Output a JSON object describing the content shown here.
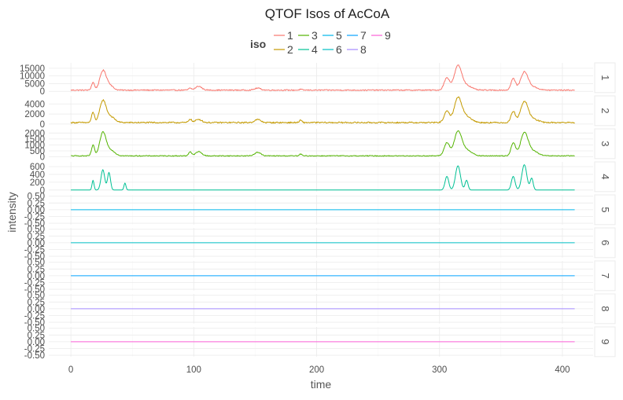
{
  "chart_data": {
    "type": "line",
    "title": "QTOF Isos of AcCoA",
    "xlabel": "time",
    "ylabel": "intensity",
    "xlim": [
      -18,
      425
    ],
    "x_ticks": [
      0,
      100,
      200,
      300,
      400
    ],
    "x_tick_labels": [
      "0",
      "100",
      "200",
      "300",
      "400"
    ],
    "grid": true,
    "facets": "rows by iso, free y scales",
    "legend": {
      "title": "iso",
      "placement": "top",
      "entries": [
        "1",
        "2",
        "3",
        "4",
        "5",
        "6",
        "7",
        "8",
        "9"
      ]
    },
    "series": [
      {
        "name": "1",
        "color": "#F8766D",
        "ylim": [
          -800,
          18500
        ],
        "y_ticks": [
          0,
          5000,
          10000,
          15000
        ],
        "y_tick_labels": [
          "0",
          "5000",
          "10000",
          "15000"
        ],
        "baseline": 800,
        "peaks": [
          [
            18,
            5000,
            1.2
          ],
          [
            26,
            12000,
            2.5
          ],
          [
            31,
            3500,
            3.0
          ],
          [
            97,
            1200,
            1.2
          ],
          [
            104,
            2500,
            2.5
          ],
          [
            152,
            1300,
            2.5
          ],
          [
            187,
            500,
            1.0
          ],
          [
            306,
            8000,
            2.2
          ],
          [
            315,
            15500,
            3.0
          ],
          [
            322,
            3000,
            4.0
          ],
          [
            360,
            7500,
            1.8
          ],
          [
            369,
            11500,
            3.0
          ],
          [
            376,
            2000,
            4.0
          ]
        ]
      },
      {
        "name": "2",
        "color": "#C49A00",
        "ylim": [
          -300,
          5600
        ],
        "y_ticks": [
          0,
          2000,
          4000
        ],
        "y_tick_labels": [
          "0",
          "2000",
          "4000"
        ],
        "baseline": 300,
        "peaks": [
          [
            18,
            2000,
            1.2
          ],
          [
            26,
            4200,
            2.5
          ],
          [
            32,
            1200,
            3.5
          ],
          [
            97,
            700,
            1.2
          ],
          [
            104,
            650,
            2.5
          ],
          [
            152,
            600,
            2.5
          ],
          [
            187,
            450,
            1.0
          ],
          [
            306,
            2200,
            2.2
          ],
          [
            315,
            4800,
            3.0
          ],
          [
            322,
            1200,
            4.0
          ],
          [
            360,
            2200,
            1.8
          ],
          [
            369,
            4100,
            3.0
          ],
          [
            376,
            700,
            4.0
          ]
        ]
      },
      {
        "name": "3",
        "color": "#53B400",
        "ylim": [
          -150,
          2350
        ],
        "y_ticks": [
          0,
          500,
          1000,
          1500,
          2000
        ],
        "y_tick_labels": [
          "0",
          "500",
          "1000",
          "1500",
          "2000"
        ],
        "baseline": 80,
        "peaks": [
          [
            18,
            900,
            1.2
          ],
          [
            26,
            1900,
            2.5
          ],
          [
            32,
            500,
            3.5
          ],
          [
            97,
            350,
            1.2
          ],
          [
            104,
            350,
            2.5
          ],
          [
            152,
            300,
            2.5
          ],
          [
            187,
            150,
            1.0
          ],
          [
            306,
            1100,
            2.2
          ],
          [
            315,
            2000,
            3.0
          ],
          [
            322,
            500,
            4.0
          ],
          [
            360,
            1100,
            1.8
          ],
          [
            369,
            1900,
            3.0
          ],
          [
            376,
            400,
            4.0
          ]
        ]
      },
      {
        "name": "4",
        "color": "#00C094",
        "ylim": [
          -40,
          720
        ],
        "y_ticks": [
          0,
          200,
          400,
          600
        ],
        "y_tick_labels": [
          "0",
          "200",
          "400",
          "600"
        ],
        "baseline": 0,
        "peaks": [
          [
            18,
            250,
            0.8
          ],
          [
            26,
            520,
            1.5
          ],
          [
            31,
            450,
            1.2
          ],
          [
            44,
            180,
            0.8
          ],
          [
            306,
            350,
            1.5
          ],
          [
            315,
            620,
            2.0
          ],
          [
            322,
            250,
            1.2
          ],
          [
            360,
            350,
            1.5
          ],
          [
            369,
            650,
            2.0
          ],
          [
            375,
            300,
            1.2
          ]
        ]
      },
      {
        "name": "5",
        "color": "#00B6EB",
        "ylim": [
          -0.55,
          0.55
        ],
        "baseline": 0,
        "peaks": [],
        "y_ticks": [
          -0.5,
          -0.25,
          0,
          0.25,
          0.5
        ],
        "y_tick_labels": [
          "-0.50",
          "-0.25",
          "0.00",
          "0.25",
          "0.50"
        ]
      },
      {
        "name": "6",
        "color": "#00BFC4",
        "ylim": [
          -0.55,
          0.55
        ],
        "baseline": 0,
        "peaks": [],
        "y_ticks": [
          -0.5,
          -0.25,
          0,
          0.25,
          0.5
        ],
        "y_tick_labels": [
          "-0.50",
          "-0.25",
          "0.00",
          "0.25",
          "0.50"
        ]
      },
      {
        "name": "7",
        "color": "#06A4FF",
        "ylim": [
          -0.55,
          0.55
        ],
        "baseline": 0,
        "peaks": [],
        "y_ticks": [
          -0.5,
          -0.25,
          0,
          0.25,
          0.5
        ],
        "y_tick_labels": [
          "-0.50",
          "-0.25",
          "0.00",
          "0.25",
          "0.50"
        ]
      },
      {
        "name": "8",
        "color": "#A58AFF",
        "ylim": [
          -0.55,
          0.55
        ],
        "baseline": 0,
        "peaks": [],
        "y_ticks": [
          -0.5,
          -0.25,
          0,
          0.25,
          0.5
        ],
        "y_tick_labels": [
          "-0.50",
          "-0.25",
          "0.00",
          "0.25",
          "0.50"
        ]
      },
      {
        "name": "9",
        "color": "#FB61D7",
        "ylim": [
          -0.55,
          0.55
        ],
        "baseline": 0,
        "peaks": [],
        "y_ticks": [
          -0.5,
          -0.25,
          0,
          0.25,
          0.5
        ],
        "y_tick_labels": [
          "-0.50",
          "-0.25",
          "0.00",
          "0.25",
          "0.50"
        ]
      }
    ]
  }
}
